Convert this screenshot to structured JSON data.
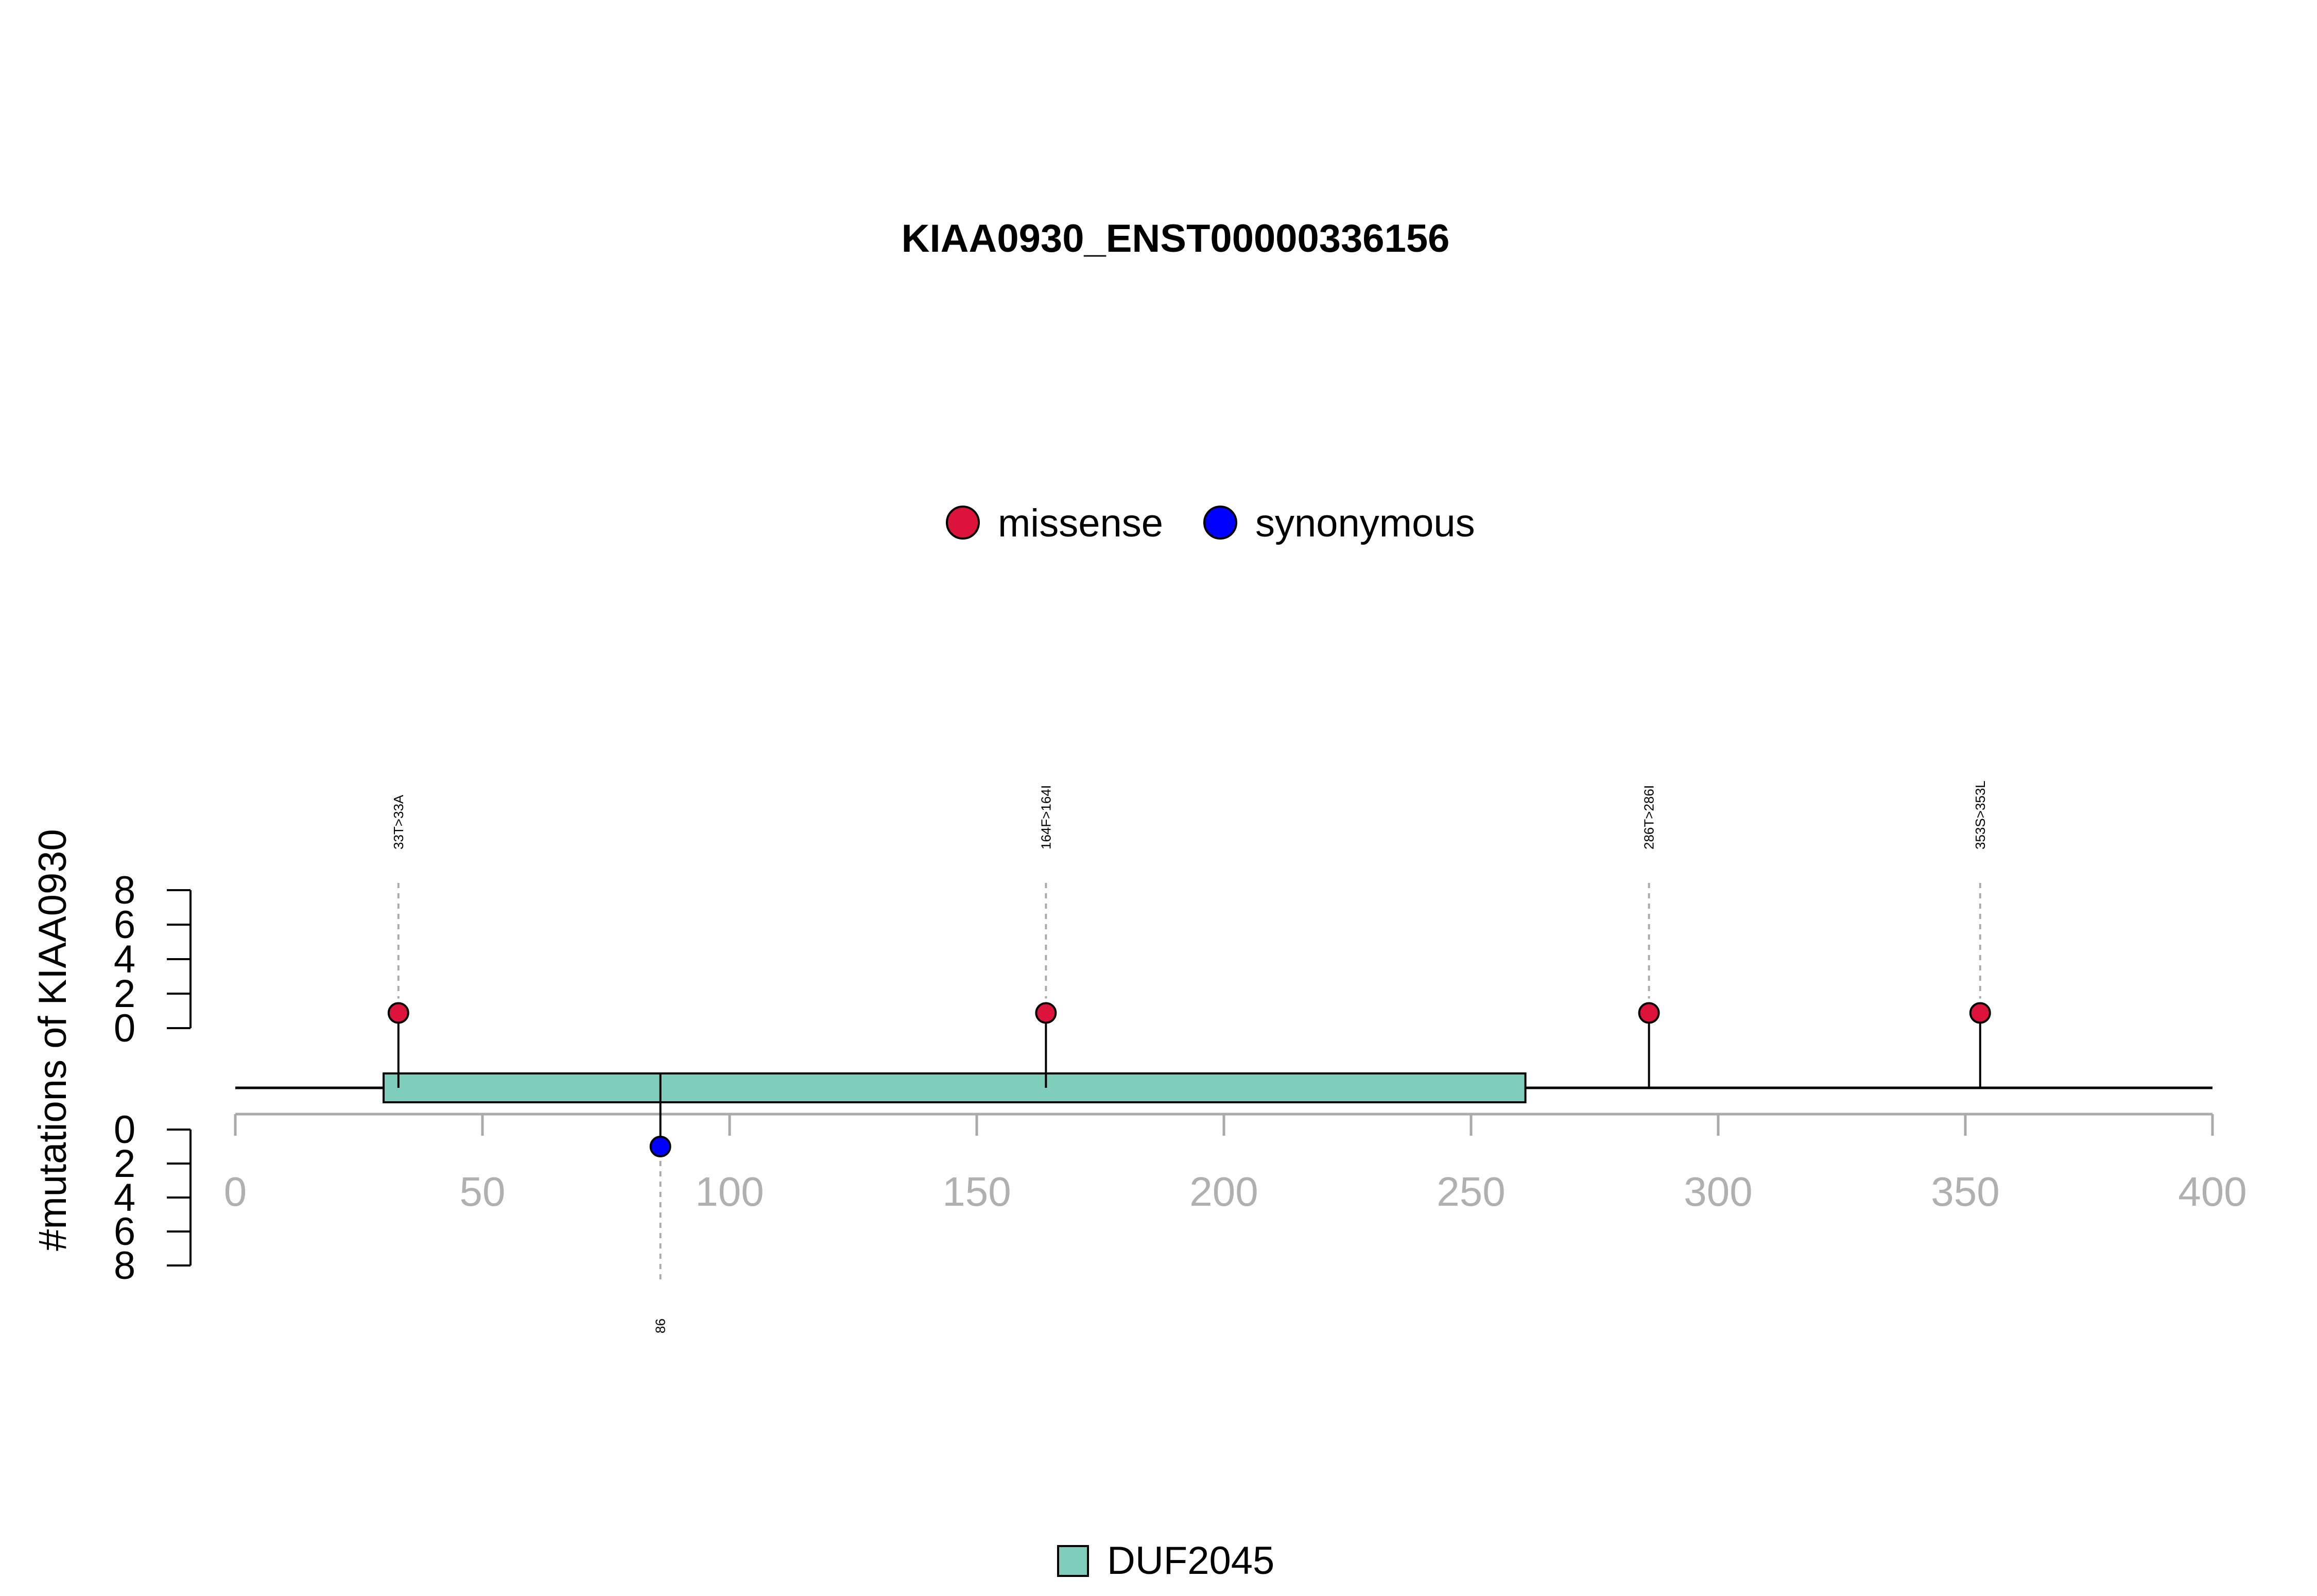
{
  "chart_data": {
    "type": "lollipop",
    "title": "KIAA0930_ENST00000336156",
    "ylabel": "#mutations of KIAA0930",
    "xlim": [
      0,
      400
    ],
    "x_ticks": [
      0,
      50,
      100,
      150,
      200,
      250,
      300,
      350,
      400
    ],
    "y_ticks": [
      0,
      2,
      4,
      6,
      8
    ],
    "legend": [
      {
        "label": "missense",
        "color": "#DC143C"
      },
      {
        "label": "synonymous",
        "color": "#0000FF"
      }
    ],
    "mutations": [
      {
        "position": 33,
        "label": "33T>33A",
        "type": "missense",
        "count": 1,
        "side": "top"
      },
      {
        "position": 164,
        "label": "164F>164I",
        "type": "missense",
        "count": 1,
        "side": "top"
      },
      {
        "position": 286,
        "label": "286T>286I",
        "type": "missense",
        "count": 1,
        "side": "top"
      },
      {
        "position": 353,
        "label": "353S>353L",
        "type": "missense",
        "count": 1,
        "side": "top"
      },
      {
        "position": 86,
        "label": "86",
        "type": "synonymous",
        "count": 1,
        "side": "bottom"
      }
    ],
    "domains": [
      {
        "name": "DUF2045",
        "start": 30,
        "end": 261,
        "color": "#7FCDBB"
      }
    ],
    "domain_legend": [
      {
        "label": "DUF2045",
        "color": "#7FCDBB"
      }
    ]
  }
}
